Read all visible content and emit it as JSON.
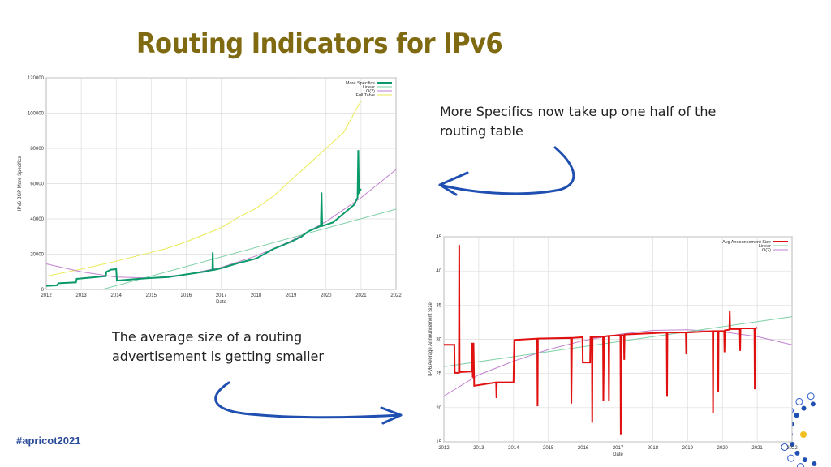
{
  "slide": {
    "title": "Routing Indicators for IPv6",
    "note_top": [
      "More Specifics now take up one half of the",
      "routing table"
    ],
    "note_bottom": [
      "The average size of a routing",
      "advertisement is getting smaller"
    ],
    "hashtag": "#apricot2021",
    "arrow_color": "#1f4fb0"
  },
  "chart_data": [
    {
      "type": "line",
      "xlabel": "Date",
      "ylabel": "IPv6 BGP More Specifics",
      "xlim": [
        2012,
        2022
      ],
      "ylim": [
        0,
        120000
      ],
      "xticks": [
        "2012",
        "2013",
        "2014",
        "2015",
        "2016",
        "2017",
        "2018",
        "2019",
        "2020",
        "2021",
        "2022"
      ],
      "yticks": [
        "0",
        "20000",
        "40000",
        "60000",
        "80000",
        "100000",
        "120000"
      ],
      "grid": true,
      "legend": "top-right",
      "series": [
        {
          "name": "More Specifics",
          "color": "#0a9a6a",
          "width": 2,
          "points": [
            [
              2012,
              2000
            ],
            [
              2012.3,
              2300
            ],
            [
              2012.35,
              3500
            ],
            [
              2012.85,
              4000
            ],
            [
              2012.87,
              6000
            ],
            [
              2013.7,
              7500
            ],
            [
              2013.72,
              10000
            ],
            [
              2013.85,
              11200
            ],
            [
              2014,
              11500
            ],
            [
              2014.02,
              5000
            ],
            [
              2014.5,
              5800
            ],
            [
              2015,
              6500
            ],
            [
              2015.5,
              7000
            ],
            [
              2016,
              8500
            ],
            [
              2016.5,
              10000
            ],
            [
              2016.75,
              11000
            ],
            [
              2016.76,
              21000
            ],
            [
              2016.77,
              11000
            ],
            [
              2017,
              12000
            ],
            [
              2017.5,
              15000
            ],
            [
              2018,
              17500
            ],
            [
              2018.5,
              23000
            ],
            [
              2019,
              27000
            ],
            [
              2019.3,
              30000
            ],
            [
              2019.5,
              33000
            ],
            [
              2019.85,
              36000
            ],
            [
              2019.87,
              55000
            ],
            [
              2019.89,
              36000
            ],
            [
              2020.2,
              38000
            ],
            [
              2020.5,
              43000
            ],
            [
              2020.8,
              48000
            ],
            [
              2020.9,
              52000
            ],
            [
              2020.92,
              79000
            ],
            [
              2020.94,
              55000
            ],
            [
              2021,
              57000
            ]
          ]
        },
        {
          "name": "Linear",
          "color": "#7ccfa4",
          "width": 1,
          "points": [
            [
              2013.6,
              0
            ],
            [
              2022,
              45500
            ]
          ]
        },
        {
          "name": "O(2)",
          "color": "#c080d0",
          "width": 1,
          "points": [
            [
              2012,
              14500
            ],
            [
              2013,
              10000
            ],
            [
              2014,
              7000
            ],
            [
              2015,
              6500
            ],
            [
              2016,
              8500
            ],
            [
              2017,
              12500
            ],
            [
              2018,
              19000
            ],
            [
              2019,
              27500
            ],
            [
              2020,
              38500
            ],
            [
              2021,
              52000
            ],
            [
              2022,
              68000
            ]
          ]
        },
        {
          "name": "Full Table",
          "color": "#eaea50",
          "width": 1,
          "points": [
            [
              2012,
              7500
            ],
            [
              2013,
              11500
            ],
            [
              2014,
              16000
            ],
            [
              2015,
              21000
            ],
            [
              2015.4,
              23000
            ],
            [
              2016,
              27000
            ],
            [
              2017,
              35000
            ],
            [
              2017.5,
              41000
            ],
            [
              2018,
              46000
            ],
            [
              2018.5,
              53000
            ],
            [
              2019,
              62000
            ],
            [
              2019.5,
              71000
            ],
            [
              2020,
              80000
            ],
            [
              2020.5,
              89000
            ],
            [
              2021,
              107000
            ]
          ]
        }
      ]
    },
    {
      "type": "line",
      "xlabel": "Date",
      "ylabel": "IPv6 Average Announcement Size",
      "xlim": [
        2012,
        2022
      ],
      "ylim": [
        15,
        45
      ],
      "xticks": [
        "2012",
        "2013",
        "2014",
        "2015",
        "2016",
        "2017",
        "2018",
        "2019",
        "2020",
        "2021",
        "2022"
      ],
      "yticks": [
        "15",
        "20",
        "25",
        "30",
        "35",
        "40",
        "45"
      ],
      "grid": true,
      "legend": "top-right",
      "series": [
        {
          "name": "Avg Announcement Size",
          "color": "#e01010",
          "width": 2,
          "points": [
            [
              2012,
              29.2
            ],
            [
              2012.3,
              29.2
            ],
            [
              2012.31,
              25.1
            ],
            [
              2012.43,
              25.1
            ],
            [
              2012.44,
              43.8
            ],
            [
              2012.45,
              25.2
            ],
            [
              2012.8,
              25.3
            ],
            [
              2012.81,
              29.5
            ],
            [
              2012.83,
              24.4
            ],
            [
              2012.85,
              29.5
            ],
            [
              2012.87,
              23.2
            ],
            [
              2013.5,
              23.7
            ],
            [
              2013.51,
              21.4
            ],
            [
              2013.52,
              23.7
            ],
            [
              2014,
              23.7
            ],
            [
              2014.02,
              29.9
            ],
            [
              2014.68,
              30.1
            ],
            [
              2014.69,
              20.2
            ],
            [
              2014.7,
              30.1
            ],
            [
              2015.65,
              30.2
            ],
            [
              2015.66,
              20.6
            ],
            [
              2015.68,
              30.2
            ],
            [
              2015.98,
              30.3
            ],
            [
              2015.99,
              26.6
            ],
            [
              2016.2,
              26.6
            ],
            [
              2016.21,
              30.3
            ],
            [
              2016.25,
              30.3
            ],
            [
              2016.26,
              17.8
            ],
            [
              2016.27,
              30.3
            ],
            [
              2016.57,
              30.4
            ],
            [
              2016.58,
              21
            ],
            [
              2016.6,
              30.4
            ],
            [
              2016.73,
              30.5
            ],
            [
              2016.74,
              21
            ],
            [
              2016.75,
              30.5
            ],
            [
              2017.07,
              30.6
            ],
            [
              2017.08,
              16.1
            ],
            [
              2017.09,
              30.6
            ],
            [
              2017.17,
              30.6
            ],
            [
              2017.18,
              27
            ],
            [
              2017.19,
              30.7
            ],
            [
              2018.4,
              31
            ],
            [
              2018.41,
              21.6
            ],
            [
              2018.42,
              31
            ],
            [
              2018.95,
              31
            ],
            [
              2018.96,
              27.8
            ],
            [
              2018.97,
              31
            ],
            [
              2019.72,
              31.2
            ],
            [
              2019.73,
              19.2
            ],
            [
              2019.74,
              31.2
            ],
            [
              2019.87,
              31.2
            ],
            [
              2019.88,
              22.3
            ],
            [
              2019.89,
              31.2
            ],
            [
              2020.05,
              31.2
            ],
            [
              2020.06,
              28.1
            ],
            [
              2020.07,
              31.3
            ],
            [
              2020.2,
              31.4
            ],
            [
              2020.21,
              34.1
            ],
            [
              2020.22,
              31.5
            ],
            [
              2020.5,
              31.5
            ],
            [
              2020.51,
              28.3
            ],
            [
              2020.52,
              31.6
            ],
            [
              2020.92,
              31.6
            ],
            [
              2020.93,
              22.7
            ],
            [
              2020.94,
              31.6
            ],
            [
              2021,
              31.7
            ]
          ]
        },
        {
          "name": "Linear",
          "color": "#7ccfa4",
          "width": 1,
          "points": [
            [
              2012,
              26
            ],
            [
              2022,
              33.3
            ]
          ]
        },
        {
          "name": "O(2)",
          "color": "#c080d0",
          "width": 1,
          "points": [
            [
              2012,
              21.7
            ],
            [
              2013,
              24.8
            ],
            [
              2014,
              26.8
            ],
            [
              2015,
              28.5
            ],
            [
              2016,
              29.8
            ],
            [
              2017,
              30.7
            ],
            [
              2018,
              31.3
            ],
            [
              2019,
              31.4
            ],
            [
              2020,
              31.1
            ],
            [
              2021,
              30.4
            ],
            [
              2022,
              29.2
            ]
          ]
        }
      ]
    }
  ]
}
